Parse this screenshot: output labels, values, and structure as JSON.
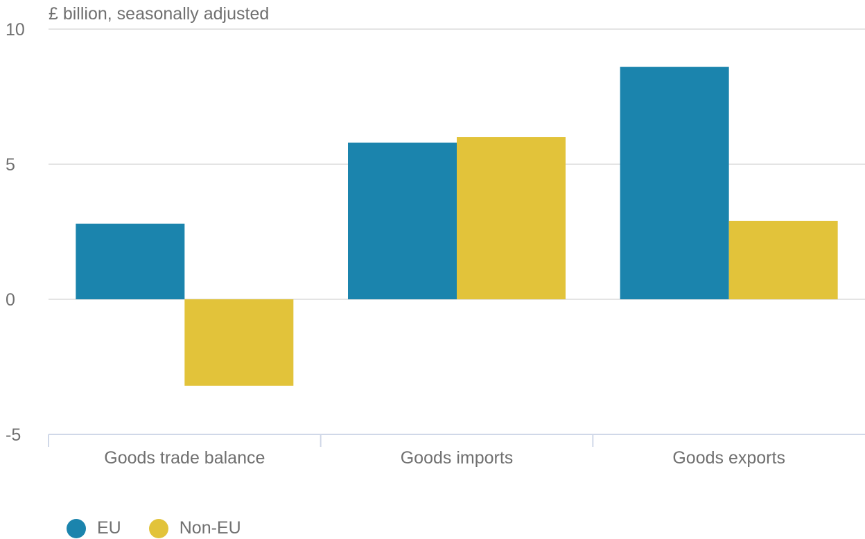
{
  "chart_data": {
    "type": "bar",
    "ylabel": "£ billion, seasonally adjusted",
    "categories": [
      "Goods trade balance",
      "Goods imports",
      "Goods exports"
    ],
    "series": [
      {
        "name": "EU",
        "color": "#1b84ad",
        "values": [
          2.8,
          5.8,
          8.6
        ]
      },
      {
        "name": "Non-EU",
        "color": "#e2c33a",
        "values": [
          -3.2,
          6.0,
          2.9
        ]
      }
    ],
    "ylim": [
      -5,
      10
    ],
    "yticks": [
      -5,
      0,
      5,
      10
    ],
    "ytick_labels": [
      "-5",
      "0",
      "5",
      "10"
    ],
    "grid": true,
    "legend_position": "bottom-left"
  }
}
